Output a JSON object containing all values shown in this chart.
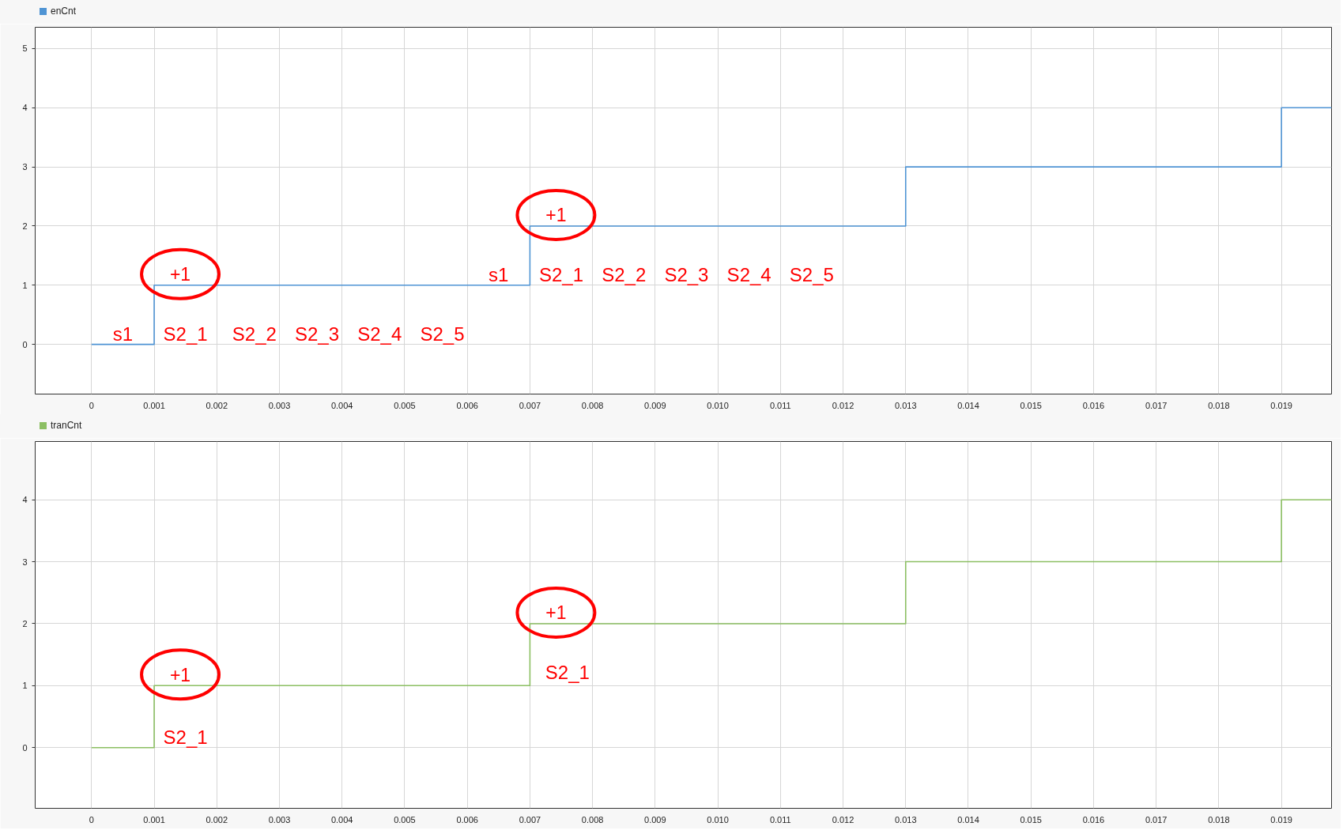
{
  "chart_data": [
    {
      "type": "step",
      "x": [
        0,
        0.001,
        0.007,
        0.013,
        0.019,
        0.0198
      ],
      "series": [
        {
          "name": "enCnt",
          "color": "#4f94d4",
          "values": [
            0,
            1,
            2,
            3,
            4,
            4
          ]
        }
      ],
      "xlim": [
        -0.0009,
        0.0198
      ],
      "ylim": [
        -0.84,
        5.36
      ],
      "xticks": [
        0,
        0.001,
        0.002,
        0.003,
        0.004,
        0.005,
        0.006,
        0.007,
        0.008,
        0.009,
        {
          "value": 0.01,
          "label": "0.010"
        },
        0.011,
        0.012,
        0.013,
        0.014,
        0.015,
        0.016,
        0.017,
        0.018,
        0.019
      ],
      "yticks": [
        0,
        1,
        2,
        3,
        4,
        5
      ],
      "grid": true,
      "legend": "top left",
      "annotations": [
        {
          "text": "s1",
          "x": 0.0005,
          "y": 0
        },
        "S2_1",
        "S2_2",
        "S2_3",
        "S2_4",
        "S2_5",
        {
          "text": "+1",
          "x": 0.001,
          "y": 1
        },
        {
          "text": "s1",
          "x": 0.0065,
          "y": 1
        },
        "S2_1",
        "S2_2",
        "S2_3",
        "S2_4",
        "S2_5",
        {
          "text": "+1",
          "x": 0.007,
          "y": 2
        }
      ]
    },
    {
      "type": "step",
      "x": [
        0,
        0.001,
        0.007,
        0.013,
        0.019,
        0.0198
      ],
      "series": [
        {
          "name": "tranCnt",
          "color": "#8cbf63",
          "values": [
            0,
            1,
            2,
            3,
            4,
            4
          ]
        }
      ],
      "xlim": [
        -0.0009,
        0.0198
      ],
      "ylim": [
        -0.98,
        4.94
      ],
      "xticks": [
        0,
        0.001,
        0.002,
        0.003,
        0.004,
        0.005,
        0.006,
        0.007,
        0.008,
        0.009,
        {
          "value": 0.01,
          "label": "0.010"
        },
        0.011,
        0.012,
        0.013,
        0.014,
        0.015,
        0.016,
        0.017,
        0.018,
        0.019
      ],
      "yticks": [
        0,
        1,
        2,
        3,
        4
      ],
      "grid": true,
      "legend": "top left",
      "annotations": [
        {
          "text": "+1",
          "x": 0.001,
          "y": 1
        },
        "S2_1",
        {
          "text": "+1",
          "x": 0.007,
          "y": 2
        },
        "S2_1"
      ]
    }
  ]
}
